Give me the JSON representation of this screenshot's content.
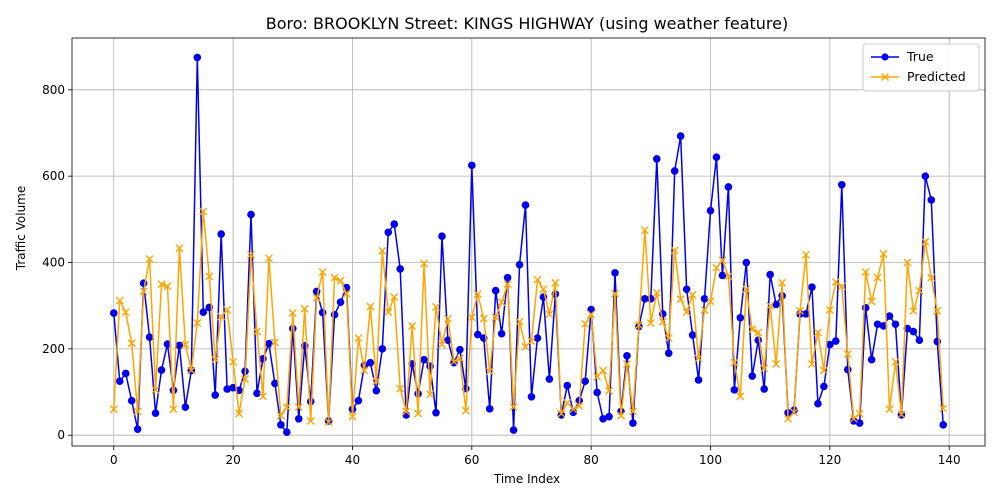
{
  "chart_data": {
    "type": "line",
    "title": "Boro: BROOKLYN Street: KINGS HIGHWAY (using weather feature)",
    "xlabel": "Time Index",
    "ylabel": "Traffic Volume",
    "xlim": [
      -7,
      146
    ],
    "ylim": [
      -25,
      920
    ],
    "xticks": [
      0,
      20,
      40,
      60,
      80,
      100,
      120,
      140
    ],
    "yticks": [
      0,
      200,
      400,
      600,
      800
    ],
    "grid": true,
    "legend_position": "top-right",
    "series": [
      {
        "name": "True",
        "color": "#0000ee",
        "marker": "circle",
        "values": [
          283,
          125,
          143,
          80,
          14,
          352,
          227,
          51,
          151,
          211,
          104,
          208,
          65,
          150,
          875,
          285,
          296,
          93,
          466,
          107,
          110,
          104,
          148,
          511,
          97,
          177,
          212,
          120,
          24,
          7,
          247,
          38,
          207,
          78,
          333,
          284,
          33,
          279,
          308,
          342,
          60,
          80,
          162,
          168,
          103,
          200,
          470,
          489,
          385,
          47,
          165,
          96,
          175,
          160,
          52,
          461,
          220,
          168,
          198,
          108,
          625,
          233,
          225,
          61,
          335,
          235,
          365,
          12,
          395,
          533,
          89,
          225,
          320,
          130,
          327,
          47,
          115,
          53,
          80,
          125,
          291,
          99,
          38,
          43,
          376,
          55,
          184,
          28,
          252,
          316,
          316,
          640,
          281,
          190,
          612,
          693,
          338,
          232,
          128,
          316,
          520,
          644,
          370,
          575,
          105,
          272,
          400,
          137,
          220,
          107,
          372,
          303,
          323,
          52,
          58,
          281,
          281,
          343,
          73,
          113,
          210,
          218,
          580,
          152,
          33,
          28,
          295,
          175,
          257,
          253,
          276,
          257,
          47,
          247,
          240,
          220,
          600,
          545,
          217,
          24
        ]
      },
      {
        "name": "Predicted",
        "color": "#ffa500",
        "marker": "x",
        "values": [
          60,
          312,
          285,
          213,
          55,
          333,
          408,
          105,
          350,
          345,
          60,
          433,
          210,
          150,
          260,
          518,
          368,
          175,
          275,
          290,
          170,
          50,
          130,
          418,
          240,
          90,
          410,
          215,
          45,
          65,
          283,
          65,
          293,
          33,
          318,
          378,
          30,
          365,
          358,
          328,
          43,
          225,
          150,
          298,
          125,
          427,
          285,
          320,
          108,
          55,
          253,
          50,
          398,
          95,
          297,
          210,
          270,
          170,
          178,
          57,
          273,
          327,
          270,
          148,
          273,
          308,
          350,
          65,
          263,
          205,
          218,
          360,
          338,
          280,
          353,
          50,
          75,
          60,
          68,
          258,
          280,
          135,
          150,
          103,
          328,
          45,
          165,
          55,
          255,
          475,
          260,
          330,
          263,
          225,
          428,
          315,
          285,
          325,
          178,
          290,
          310,
          388,
          405,
          368,
          168,
          90,
          338,
          245,
          238,
          155,
          300,
          165,
          353,
          38,
          53,
          288,
          418,
          165,
          238,
          150,
          290,
          355,
          345,
          188,
          38,
          50,
          378,
          310,
          365,
          420,
          60,
          170,
          48,
          400,
          288,
          335,
          448,
          365,
          288,
          62
        ]
      }
    ]
  }
}
